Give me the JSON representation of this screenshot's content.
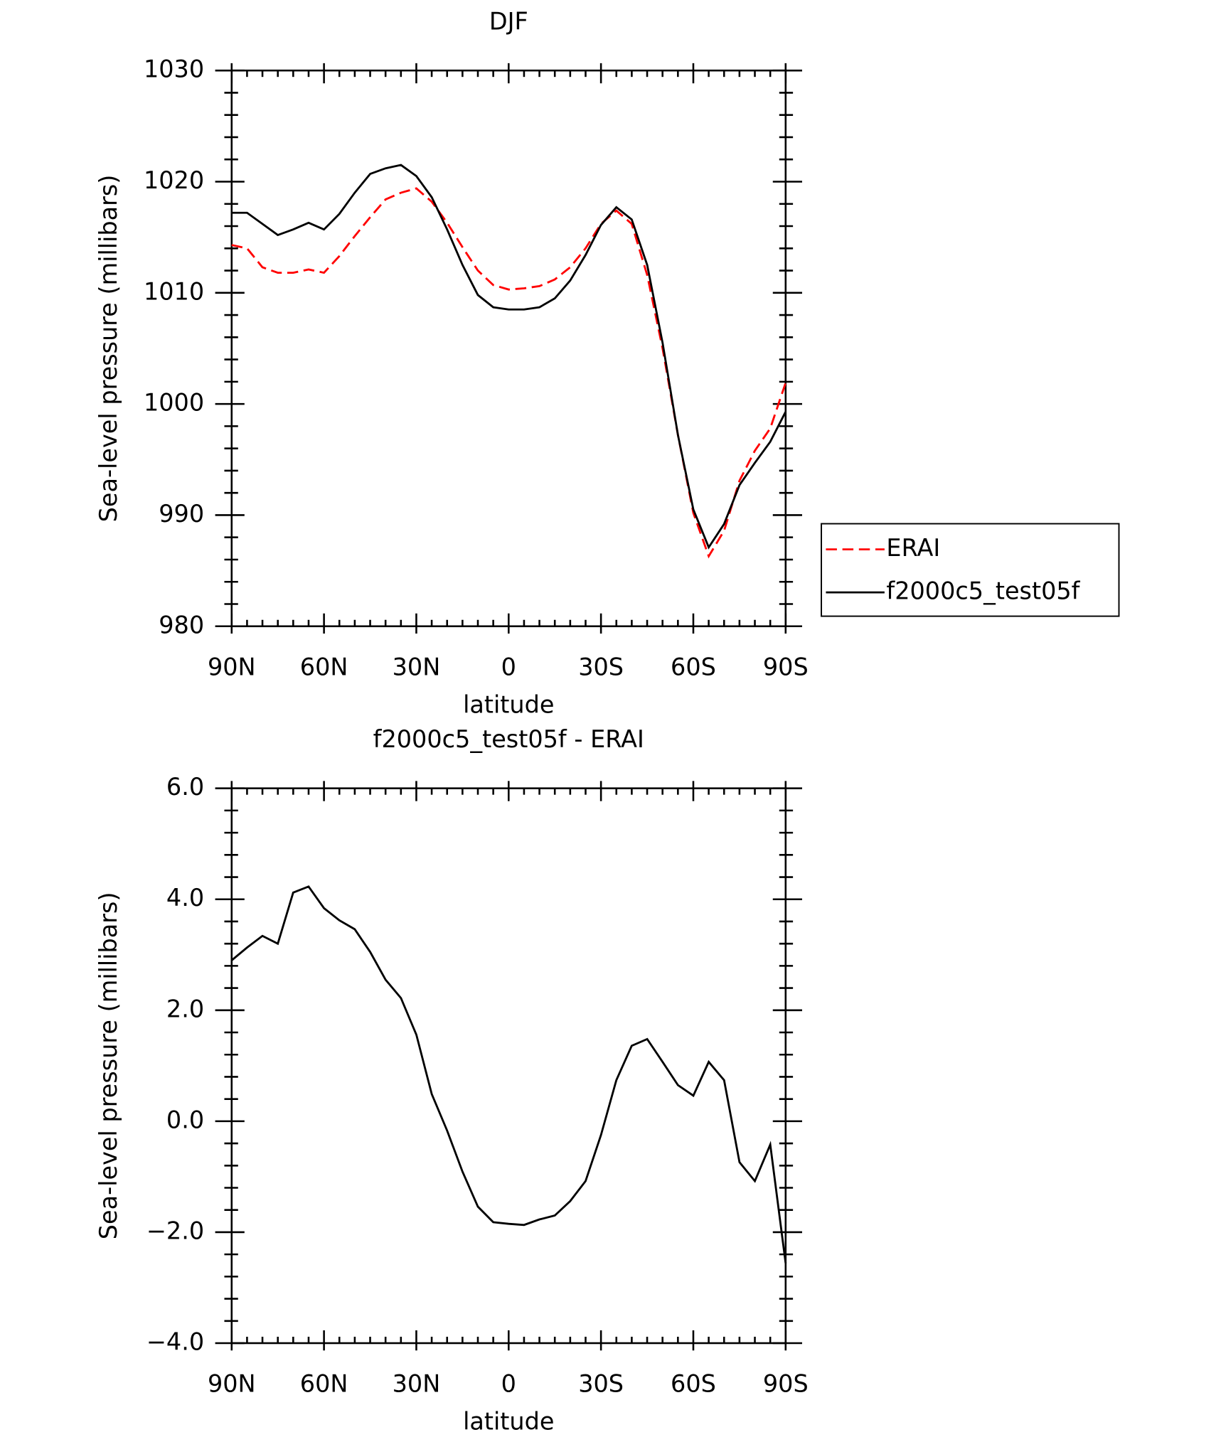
{
  "chart_data": [
    {
      "type": "line",
      "title": "DJF",
      "xlabel": "latitude",
      "ylabel": "Sea-level pressure (millibars)",
      "x": [
        90,
        85,
        80,
        75,
        70,
        65,
        60,
        55,
        50,
        45,
        40,
        35,
        30,
        25,
        20,
        15,
        10,
        5,
        0,
        -5,
        -10,
        -15,
        -20,
        -25,
        -30,
        -35,
        -40,
        -45,
        -50,
        -55,
        -60,
        -65,
        -70,
        -75,
        -80,
        -85,
        -90
      ],
      "xlim": [
        90,
        -90
      ],
      "xticks": [
        {
          "value": 90,
          "label": "90N"
        },
        {
          "value": 60,
          "label": "60N"
        },
        {
          "value": 30,
          "label": "30N"
        },
        0,
        {
          "value": -30,
          "label": "30S"
        },
        {
          "value": -60,
          "label": "60S"
        },
        {
          "value": -90,
          "label": "90S"
        }
      ],
      "ylim": [
        980,
        1030
      ],
      "yticks": [
        980,
        990,
        1000,
        1010,
        1020,
        1030
      ],
      "legend": "outside-right",
      "series": [
        {
          "name": "ERAI",
          "color": "#ff0000",
          "dash": true,
          "values": [
            1014.3,
            1014.0,
            1012.3,
            1011.8,
            1011.8,
            1012.1,
            1011.8,
            1013.3,
            1015.1,
            1016.8,
            1018.4,
            1019.0,
            1019.4,
            1018.2,
            1016.3,
            1014.1,
            1012.0,
            1010.7,
            1010.3,
            1010.4,
            1010.6,
            1011.2,
            1012.3,
            1014.0,
            1016.2,
            1017.4,
            1016.2,
            1011.6,
            1005.0,
            997.2,
            990.2,
            986.3,
            988.6,
            993.1,
            995.8,
            997.8,
            1001.9
          ]
        },
        {
          "name": "f2000c5_test05f",
          "color": "#000000",
          "dash": false,
          "values": [
            1017.2,
            1017.2,
            1016.2,
            1015.2,
            1015.7,
            1016.3,
            1015.7,
            1017.1,
            1019.0,
            1020.7,
            1021.2,
            1021.5,
            1020.5,
            1018.6,
            1015.7,
            1012.5,
            1009.8,
            1008.7,
            1008.5,
            1008.5,
            1008.7,
            1009.5,
            1011.1,
            1013.4,
            1016.1,
            1017.7,
            1016.6,
            1012.5,
            1005.5,
            997.2,
            990.5,
            987.1,
            989.2,
            992.7,
            994.7,
            996.6,
            999.3
          ]
        }
      ]
    },
    {
      "type": "line",
      "title": "f2000c5_test05f - ERAI",
      "xlabel": "latitude",
      "ylabel": "Sea-level pressure (millibars)",
      "x": [
        90,
        85,
        80,
        75,
        70,
        65,
        60,
        55,
        50,
        45,
        40,
        35,
        30,
        25,
        20,
        15,
        10,
        5,
        0,
        -5,
        -10,
        -15,
        -20,
        -25,
        -30,
        -35,
        -40,
        -45,
        -50,
        -55,
        -60,
        -65,
        -70,
        -75,
        -80,
        -85,
        -90
      ],
      "xlim": [
        90,
        -90
      ],
      "xticks": [
        {
          "value": 90,
          "label": "90N"
        },
        {
          "value": 60,
          "label": "60N"
        },
        {
          "value": 30,
          "label": "30N"
        },
        0,
        {
          "value": -30,
          "label": "30S"
        },
        {
          "value": -60,
          "label": "60S"
        },
        {
          "value": -90,
          "label": "90S"
        }
      ],
      "ylim": [
        -4,
        6
      ],
      "yticks": [
        {
          "value": -4,
          "label": "−4.0"
        },
        {
          "value": -2,
          "label": "−2.0"
        },
        {
          "value": 0,
          "label": "0.0"
        },
        {
          "value": 2,
          "label": "2.0"
        },
        {
          "value": 4,
          "label": "4.0"
        },
        {
          "value": 6,
          "label": "6.0"
        }
      ],
      "series": [
        {
          "color": "#000000",
          "dash": false,
          "values": [
            2.9,
            3.13,
            3.34,
            3.2,
            4.12,
            4.23,
            3.84,
            3.62,
            3.46,
            3.05,
            2.55,
            2.22,
            1.56,
            0.49,
            -0.17,
            -0.91,
            -1.54,
            -1.82,
            -1.85,
            -1.87,
            -1.77,
            -1.7,
            -1.44,
            -1.08,
            -0.25,
            0.74,
            1.36,
            1.48,
            1.07,
            0.65,
            0.46,
            1.07,
            0.74,
            -0.74,
            -1.08,
            -0.42,
            -2.56
          ]
        }
      ]
    }
  ]
}
